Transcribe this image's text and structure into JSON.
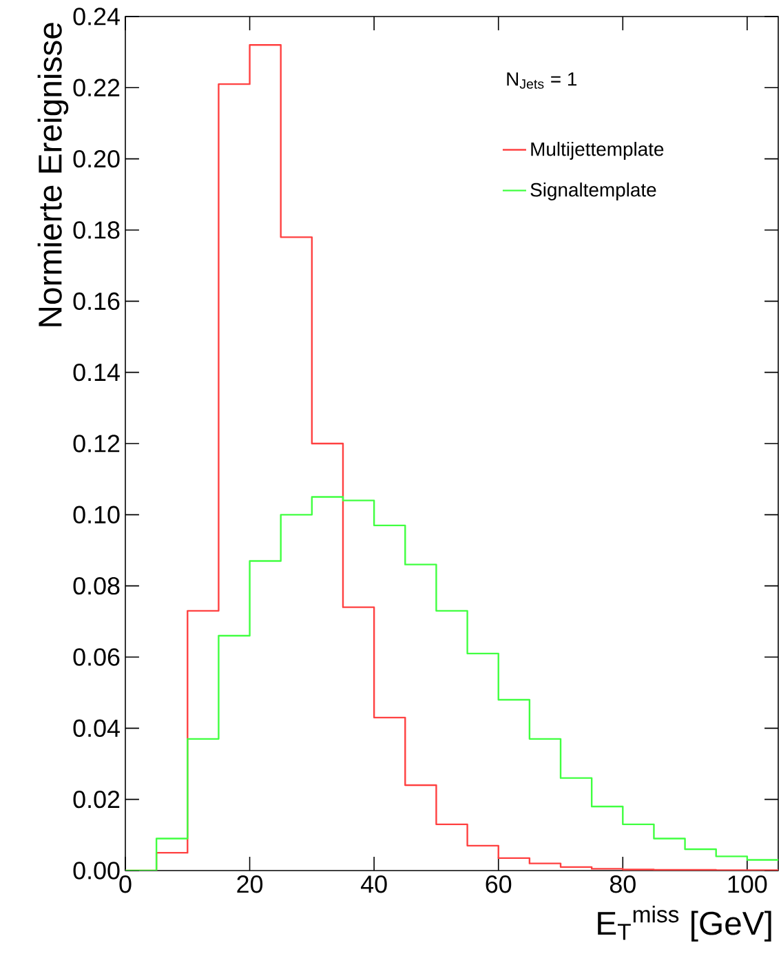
{
  "chart_data": {
    "type": "histogram",
    "xlabel": "E$_{T}$$^{miss}$ [GeV]",
    "ylabel": "Normierte Ereignisse",
    "annotations": [
      "N$_{Jets}$ = 1"
    ],
    "bins": [
      0,
      5,
      10,
      15,
      20,
      25,
      30,
      35,
      40,
      45,
      50,
      55,
      60,
      65,
      70,
      75,
      80,
      85,
      90,
      95,
      100,
      105
    ],
    "series": [
      {
        "name": "Multijettemplate",
        "color": "#ff4040",
        "values": [
          0,
          0.005,
          0.073,
          0.221,
          0.232,
          0.178,
          0.12,
          0.074,
          0.043,
          0.024,
          0.013,
          0.007,
          0.0035,
          0.002,
          0.001,
          0.0005,
          0.0003,
          0.0002,
          0.0002,
          0.0001,
          0.0001
        ]
      },
      {
        "name": "Signaltemplate",
        "color": "#40ff40",
        "values": [
          0,
          0.009,
          0.037,
          0.066,
          0.087,
          0.1,
          0.105,
          0.104,
          0.097,
          0.086,
          0.073,
          0.061,
          0.048,
          0.037,
          0.026,
          0.018,
          0.013,
          0.009,
          0.006,
          0.004,
          0.003
        ]
      }
    ],
    "xlim": [
      0,
      105
    ],
    "ylim": [
      0,
      0.24
    ],
    "xticks": [
      0,
      20,
      40,
      60,
      80,
      100
    ],
    "yticks": [
      {
        "value": 0,
        "label": "0.00"
      },
      {
        "value": 0.02,
        "label": "0.02"
      },
      {
        "value": 0.04,
        "label": "0.04"
      },
      {
        "value": 0.06,
        "label": "0.06"
      },
      {
        "value": 0.08,
        "label": "0.08"
      },
      {
        "value": 0.1,
        "label": "0.10"
      },
      {
        "value": 0.12,
        "label": "0.12"
      },
      {
        "value": 0.14,
        "label": "0.14"
      },
      {
        "value": 0.16,
        "label": "0.16"
      },
      {
        "value": 0.18,
        "label": "0.18"
      },
      {
        "value": 0.2,
        "label": "0.20"
      },
      {
        "value": 0.22,
        "label": "0.22"
      },
      {
        "value": 0.24,
        "label": "0.24"
      }
    ],
    "grid": false,
    "legend": "top right",
    "marker": "none",
    "line_style": "solid"
  }
}
